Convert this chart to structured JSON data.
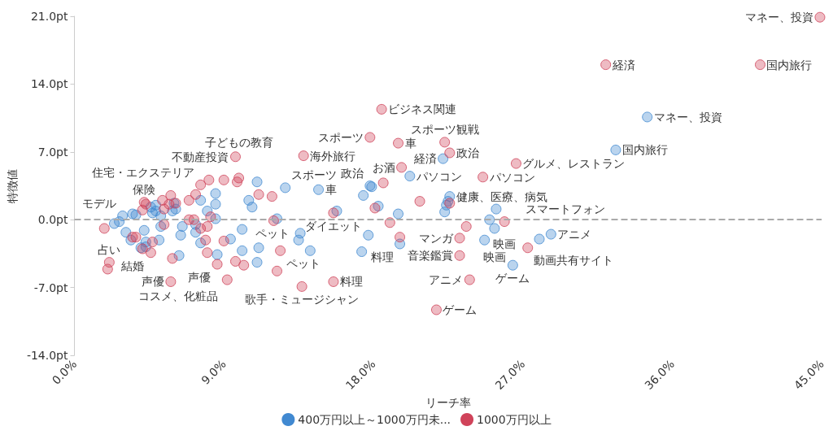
{
  "chart_data": {
    "type": "scatter",
    "xlabel": "リーチ率",
    "ylabel": "特徴値",
    "xlim": [
      0,
      45
    ],
    "xticks": [
      {
        "value": 0,
        "label": "0.0%"
      },
      {
        "value": 9,
        "label": "9.0%"
      },
      {
        "value": 18,
        "label": "18.0%"
      },
      {
        "value": 27,
        "label": "27.0%"
      },
      {
        "value": 36,
        "label": "36.0%"
      },
      {
        "value": 45,
        "label": "45.0%"
      }
    ],
    "ylim": [
      -14,
      21
    ],
    "yticks": [
      {
        "value": -14,
        "label": "-14.0pt"
      },
      {
        "value": -7,
        "label": "-7.0pt"
      },
      {
        "value": 0,
        "label": "0.0pt"
      },
      {
        "value": 7,
        "label": "7.0pt"
      },
      {
        "value": 14,
        "label": "14.0pt"
      },
      {
        "value": 21,
        "label": "21.0pt"
      }
    ],
    "marker": "circle",
    "legend": "bottom",
    "ref_lines": [
      {
        "axis": "y",
        "value": 0,
        "color": "#aaaaaa",
        "line_style": "dashed"
      }
    ],
    "series": [
      {
        "name": "400万円以上～1000万円未...",
        "color": "#4189d1",
        "x": [
          34.5,
          32.6,
          22.2,
          20.2,
          17.8,
          17.9,
          17.4,
          12.7,
          14.7,
          22.6,
          22.4,
          22.3,
          22.5,
          18.3,
          19.5,
          15.8,
          12.2,
          13.6,
          13.5,
          17.7,
          19.6,
          14.2,
          17.3,
          25.4,
          25.0,
          25.3,
          24.7,
          28.0,
          28.7,
          26.4,
          11.0,
          8.5,
          7.6,
          4.9,
          4.6,
          6.0,
          8.5,
          10.5,
          10.7,
          3.5,
          3.7,
          2.9,
          4.7,
          4.9,
          5.9,
          6.1,
          5.2,
          8.0,
          8.5,
          2.4,
          2.7,
          3.1,
          5.2,
          6.5,
          6.4,
          4.2,
          7.3,
          7.3,
          10.1,
          3.4,
          4.3,
          5.1,
          4.3,
          4.0,
          7.6,
          9.4,
          10.1,
          11.1,
          8.6,
          6.3,
          11.0
        ],
        "values": [
          10.6,
          7.2,
          6.3,
          4.5,
          3.5,
          3.4,
          2.5,
          3.3,
          3.1,
          2.4,
          1.5,
          0.8,
          1.9,
          1.4,
          0.6,
          0.9,
          0.1,
          -1.4,
          -2.1,
          -1.6,
          -2.5,
          -3.2,
          -3.3,
          1.1,
          0.0,
          -0.9,
          -2.1,
          -2.0,
          -1.5,
          -4.7,
          3.9,
          2.7,
          2.0,
          1.5,
          1.3,
          1.7,
          1.6,
          2.0,
          1.3,
          0.6,
          0.5,
          0.4,
          0.7,
          0.9,
          0.9,
          1.1,
          0.4,
          0.9,
          0.1,
          -0.4,
          -0.2,
          -1.3,
          -0.7,
          -0.7,
          -1.6,
          -1.1,
          -0.5,
          -1.3,
          -1.0,
          -2.1,
          -2.3,
          -2.1,
          -2.8,
          -2.9,
          -2.4,
          -2.0,
          -3.2,
          -2.9,
          -3.6,
          -3.7,
          -4.4
        ]
      },
      {
        "name": "1000万円以上",
        "color": "#d0435a",
        "x": [
          44.9,
          41.3,
          32.0,
          18.5,
          17.8,
          19.5,
          22.3,
          22.6,
          13.8,
          19.7,
          26.6,
          24.6,
          18.6,
          20.8,
          22.6,
          18.1,
          15.6,
          19.0,
          25.9,
          23.6,
          23.2,
          19.6,
          23.2,
          27.3,
          23.8,
          21.8,
          15.6,
          13.7,
          12.4,
          12.2,
          12.0,
          11.9,
          11.1,
          9.7,
          8.1,
          9.0,
          9.9,
          9.8,
          7.6,
          7.3,
          5.8,
          6.9,
          5.3,
          4.2,
          6.1,
          4.3,
          5.7,
          4.1,
          5.4,
          8.2,
          6.9,
          7.2,
          1.8,
          5.4,
          7.6,
          8.0,
          3.5,
          3.7,
          4.7,
          4.1,
          4.6,
          7.9,
          9.0,
          8.0,
          5.9,
          2.1,
          2.0,
          8.6,
          9.7,
          10.2,
          5.8,
          9.2
        ],
        "values": [
          20.9,
          16.0,
          16.0,
          11.4,
          8.5,
          7.9,
          8.0,
          6.9,
          6.6,
          5.4,
          5.8,
          4.4,
          3.8,
          1.9,
          1.7,
          1.2,
          0.7,
          -0.3,
          -0.2,
          -0.7,
          -1.9,
          -1.8,
          -3.7,
          -2.9,
          -6.2,
          -9.3,
          -6.4,
          -6.9,
          -3.2,
          -5.3,
          -0.1,
          2.4,
          2.6,
          6.5,
          4.1,
          4.1,
          4.3,
          3.9,
          3.6,
          2.6,
          2.5,
          2.0,
          2.0,
          1.8,
          1.7,
          1.6,
          1.6,
          1.0,
          1.1,
          0.3,
          0.0,
          0.0,
          -0.9,
          -0.5,
          -0.9,
          -0.7,
          -1.8,
          -1.8,
          -2.3,
          -3.0,
          -3.4,
          -2.1,
          -2.2,
          -3.4,
          -4.0,
          -4.4,
          -5.1,
          -4.6,
          -4.3,
          -4.7,
          -6.4,
          -6.2
        ]
      }
    ],
    "annotations": [
      {
        "text": "マネー、投資",
        "x": 44.9,
        "y": 20.9
      },
      {
        "text": "国内旅行",
        "x": 41.3,
        "y": 16.0
      },
      {
        "text": "経済",
        "x": 32.0,
        "y": 16.0
      },
      {
        "text": "マネー、投資",
        "x": 34.5,
        "y": 10.6
      },
      {
        "text": "国内旅行",
        "x": 32.6,
        "y": 7.2
      },
      {
        "text": "ビジネス関連",
        "x": 18.5,
        "y": 11.4
      },
      {
        "text": "スポーツ観戦",
        "x": 22.3,
        "y": 8.0
      },
      {
        "text": "グルメ、レストラン",
        "x": 26.6,
        "y": 5.8
      },
      {
        "text": "パソコン",
        "x": 24.6,
        "y": 4.4
      },
      {
        "text": "政治",
        "x": 22.6,
        "y": 6.9
      },
      {
        "text": "経済",
        "x": 22.2,
        "y": 6.3
      },
      {
        "text": "車",
        "x": 19.5,
        "y": 7.9
      },
      {
        "text": "お酒",
        "x": 19.7,
        "y": 5.4
      },
      {
        "text": "スポーツ",
        "x": 17.8,
        "y": 8.5
      },
      {
        "text": "海外旅行",
        "x": 13.8,
        "y": 6.6
      },
      {
        "text": "スポーツ",
        "x": 12.7,
        "y": 3.3
      },
      {
        "text": "政治",
        "x": 17.8,
        "y": 3.5
      },
      {
        "text": "車",
        "x": 14.7,
        "y": 3.1
      },
      {
        "text": "パソコン",
        "x": 20.2,
        "y": 4.5
      },
      {
        "text": "健康、医療、病気",
        "x": 22.6,
        "y": 2.4
      },
      {
        "text": "スマートフォン",
        "x": 25.4,
        "y": 1.1
      },
      {
        "text": "映画",
        "x": 25.9,
        "y": -0.2
      },
      {
        "text": "映画",
        "x": 25.3,
        "y": -0.9
      },
      {
        "text": "アニメ",
        "x": 28.7,
        "y": -1.5
      },
      {
        "text": "動画共有サイト",
        "x": 27.3,
        "y": -2.9
      },
      {
        "text": "ゲーム",
        "x": 26.4,
        "y": -4.7
      },
      {
        "text": "マンガ",
        "x": 23.2,
        "y": -1.9
      },
      {
        "text": "音楽鑑賞",
        "x": 23.2,
        "y": -3.7
      },
      {
        "text": "アニメ",
        "x": 23.8,
        "y": -6.2
      },
      {
        "text": "ゲーム",
        "x": 21.8,
        "y": -9.3
      },
      {
        "text": "料理",
        "x": 19.6,
        "y": -2.5
      },
      {
        "text": "ダイエット",
        "x": 15.6,
        "y": 0.7
      },
      {
        "text": "ペット",
        "x": 13.6,
        "y": -1.4
      },
      {
        "text": "ペット",
        "x": 12.4,
        "y": -3.2
      },
      {
        "text": "料理",
        "x": 15.6,
        "y": -6.4
      },
      {
        "text": "歌手・ミュージシャン",
        "x": 13.7,
        "y": -6.9
      },
      {
        "text": "不動産投資",
        "x": 9.7,
        "y": 6.5
      },
      {
        "text": "子どもの教育",
        "x": 9.9,
        "y": 4.3
      },
      {
        "text": "住宅・エクステリア",
        "x": 7.6,
        "y": 3.6
      },
      {
        "text": "保険",
        "x": 4.2,
        "y": 1.8
      },
      {
        "text": "モデル",
        "x": 2.9,
        "y": 0.4
      },
      {
        "text": "結婚",
        "x": 3.5,
        "y": -1.8
      },
      {
        "text": "占い",
        "x": 2.1,
        "y": -4.4
      },
      {
        "text": "声優",
        "x": 8.6,
        "y": -4.6
      },
      {
        "text": "声優",
        "x": 5.8,
        "y": -6.4
      },
      {
        "text": "コスメ、化粧品",
        "x": 9.2,
        "y": -6.2
      }
    ]
  }
}
